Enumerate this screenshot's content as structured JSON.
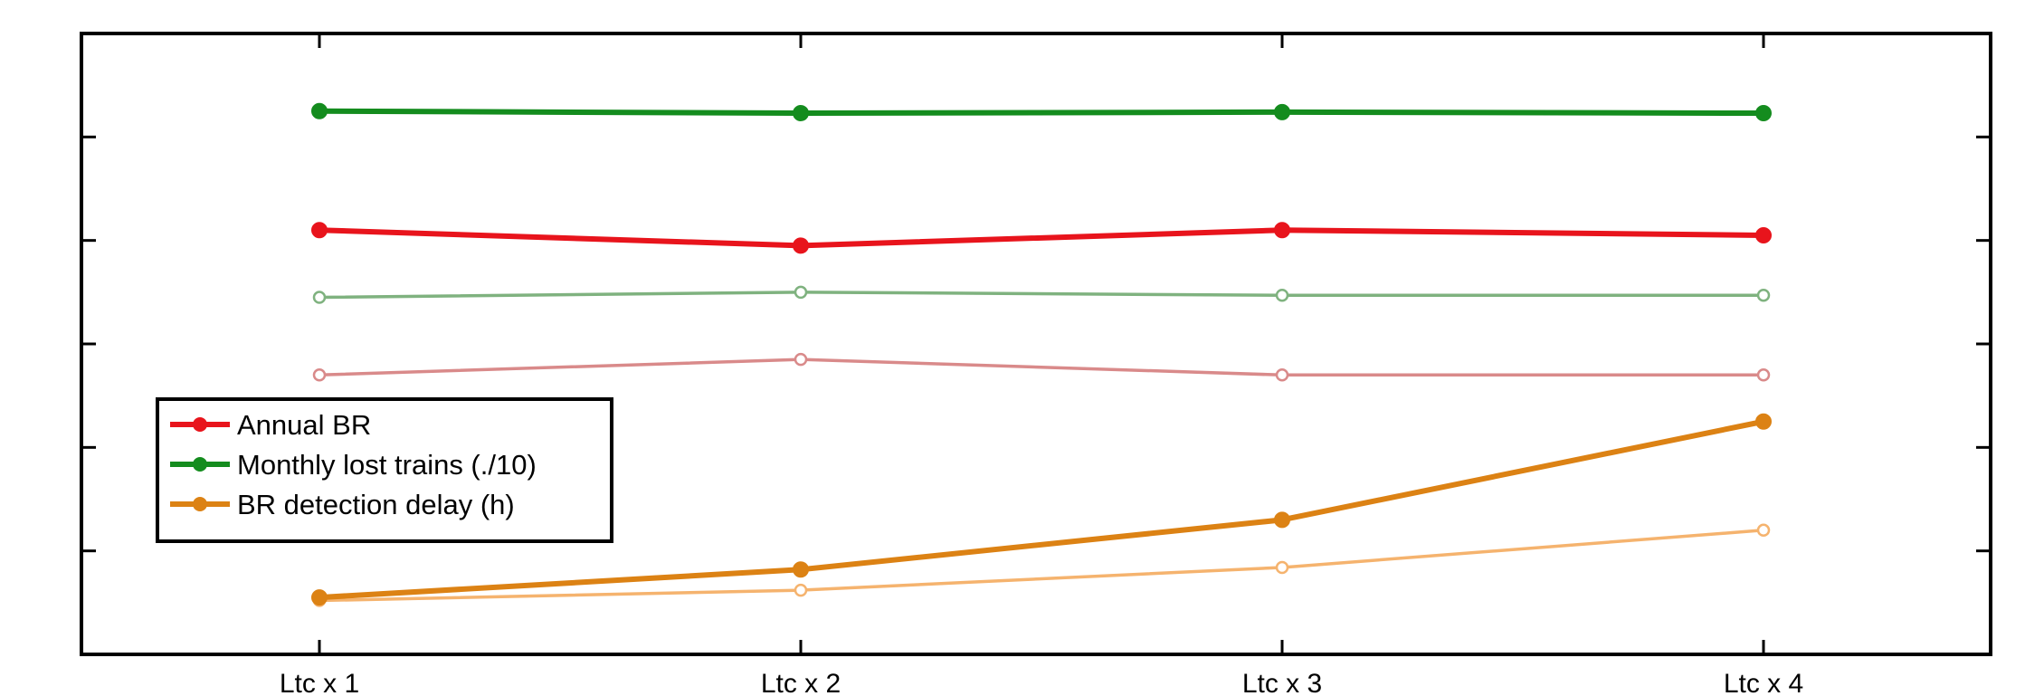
{
  "chart_data": {
    "type": "line",
    "title": "",
    "xlabel": "",
    "ylabel": "",
    "categories": [
      "Ltc x 1",
      "Ltc x 2",
      "Ltc x 3",
      "Ltc x 4"
    ],
    "ylim": [
      0,
      6
    ],
    "yticks": [
      1,
      2,
      3,
      4,
      5
    ],
    "y_tick_labels_visible": false,
    "grid": false,
    "legend": {
      "position": "lower-left",
      "entries": [
        "Annual BR",
        "Monthly lost trains (./10)",
        "BR detection delay (h)"
      ]
    },
    "series": [
      {
        "name": "Annual BR",
        "color": "#e8141c",
        "style": "bold-filled",
        "values": [
          4.1,
          3.95,
          4.1,
          4.05
        ]
      },
      {
        "name": "Monthly lost trains (./10)",
        "color": "#148c1e",
        "style": "bold-filled",
        "values": [
          5.25,
          5.23,
          5.24,
          5.23
        ]
      },
      {
        "name": "BR detection delay (h)",
        "color": "#dc8214",
        "style": "bold-filled",
        "values": [
          0.55,
          0.82,
          1.3,
          2.25
        ]
      },
      {
        "name": "",
        "color": "#d98a8a",
        "style": "light-open",
        "values": [
          2.7,
          2.85,
          2.7,
          2.7
        ]
      },
      {
        "name": "",
        "color": "#7fb27f",
        "style": "light-open",
        "values": [
          3.45,
          3.5,
          3.47,
          3.47
        ]
      },
      {
        "name": "",
        "color": "#f5b36e",
        "style": "light-open",
        "values": [
          0.52,
          0.62,
          0.84,
          1.2
        ]
      }
    ]
  }
}
